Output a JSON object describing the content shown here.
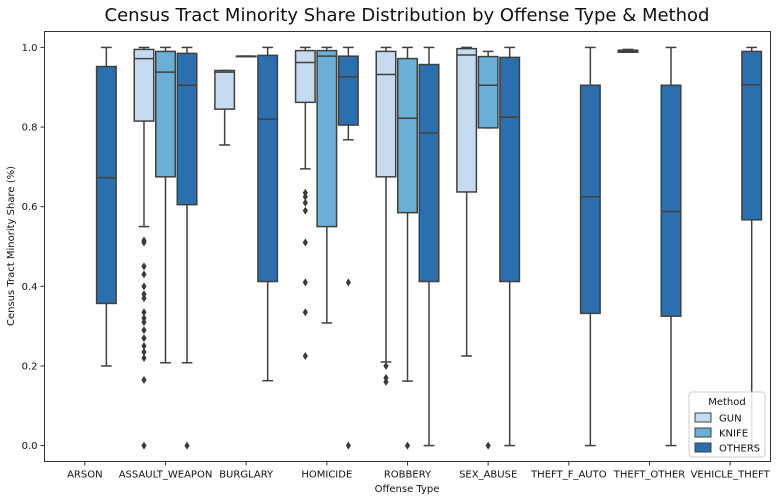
{
  "chart_data": {
    "type": "box",
    "title": "Census Tract Minority Share Distribution by Offense Type & Method",
    "xlabel": "Offense Type",
    "ylabel": "Census Tract Minority Share (%)",
    "ylim": [
      -0.04,
      1.04
    ],
    "yticks": [
      0.0,
      0.2,
      0.4,
      0.6,
      0.8,
      1.0
    ],
    "categories": [
      "ARSON",
      "ASSAULT_WEAPON",
      "BURGLARY",
      "HOMICIDE",
      "ROBBERY",
      "SEX_ABUSE",
      "THEFT_F_AUTO",
      "THEFT_OTHER",
      "VEHICLE_THEFT"
    ],
    "legend": {
      "title": "Method",
      "position": "bottom-right"
    },
    "series": [
      {
        "name": "GUN",
        "color": "#c6dbef",
        "boxes": [
          null,
          {
            "whislo": 0.55,
            "q1": 0.815,
            "med": 0.972,
            "q3": 0.995,
            "whishi": 1.0,
            "fliers": [
              0.515,
              0.51,
              0.45,
              0.43,
              0.4,
              0.38,
              0.37,
              0.335,
              0.32,
              0.31,
              0.29,
              0.27,
              0.25,
              0.235,
              0.22,
              0.165,
              0.0
            ]
          },
          {
            "whislo": 0.755,
            "q1": 0.845,
            "med": 0.938,
            "q3": 0.942,
            "whishi": 0.942,
            "fliers": []
          },
          {
            "whislo": 0.695,
            "q1": 0.862,
            "med": 0.962,
            "q3": 0.992,
            "whishi": 1.0,
            "fliers": [
              0.635,
              0.625,
              0.61,
              0.59,
              0.51,
              0.41,
              0.335,
              0.225
            ]
          },
          {
            "whislo": 0.21,
            "q1": 0.675,
            "med": 0.932,
            "q3": 0.99,
            "whishi": 1.0,
            "fliers": [
              0.2,
              0.17,
              0.16
            ]
          },
          {
            "whislo": 0.225,
            "q1": 0.637,
            "med": 0.981,
            "q3": 0.997,
            "whishi": 1.0,
            "fliers": []
          },
          null,
          {
            "whislo": 0.988,
            "q1": 0.988,
            "med": 0.99,
            "q3": 0.993,
            "whishi": 0.995,
            "fliers": []
          },
          null
        ]
      },
      {
        "name": "KNIFE",
        "color": "#6baed6",
        "boxes": [
          null,
          {
            "whislo": 0.208,
            "q1": 0.675,
            "med": 0.938,
            "q3": 0.99,
            "whishi": 1.0,
            "fliers": []
          },
          {
            "whislo": 0.978,
            "q1": 0.978,
            "med": 0.978,
            "q3": 0.978,
            "whishi": 0.978,
            "fliers": []
          },
          {
            "whislo": 0.308,
            "q1": 0.55,
            "med": 0.978,
            "q3": 0.992,
            "whishi": 1.0,
            "fliers": []
          },
          {
            "whislo": 0.162,
            "q1": 0.585,
            "med": 0.822,
            "q3": 0.972,
            "whishi": 1.0,
            "fliers": [
              0.0
            ]
          },
          {
            "whislo": 0.798,
            "q1": 0.798,
            "med": 0.905,
            "q3": 0.977,
            "whishi": 0.99,
            "fliers": [
              0.0
            ]
          },
          null,
          null,
          null
        ]
      },
      {
        "name": "OTHERS",
        "color": "#2b6faf",
        "boxes": [
          {
            "whislo": 0.2,
            "q1": 0.357,
            "med": 0.673,
            "q3": 0.952,
            "whishi": 1.0,
            "fliers": []
          },
          {
            "whislo": 0.208,
            "q1": 0.605,
            "med": 0.905,
            "q3": 0.985,
            "whishi": 1.0,
            "fliers": [
              0.0
            ]
          },
          {
            "whislo": 0.163,
            "q1": 0.412,
            "med": 0.82,
            "q3": 0.98,
            "whishi": 1.0,
            "fliers": []
          },
          {
            "whislo": 0.768,
            "q1": 0.805,
            "med": 0.926,
            "q3": 0.978,
            "whishi": 1.0,
            "fliers": [
              0.41,
              0.0
            ]
          },
          {
            "whislo": 0.0,
            "q1": 0.412,
            "med": 0.785,
            "q3": 0.957,
            "whishi": 1.0,
            "fliers": []
          },
          {
            "whislo": 0.0,
            "q1": 0.412,
            "med": 0.825,
            "q3": 0.975,
            "whishi": 1.0,
            "fliers": []
          },
          {
            "whislo": 0.0,
            "q1": 0.332,
            "med": 0.625,
            "q3": 0.905,
            "whishi": 1.0,
            "fliers": []
          },
          {
            "whislo": 0.0,
            "q1": 0.325,
            "med": 0.588,
            "q3": 0.905,
            "whishi": 1.0,
            "fliers": []
          },
          {
            "whislo": 0.0,
            "q1": 0.567,
            "med": 0.906,
            "q3": 0.99,
            "whishi": 1.0,
            "fliers": []
          }
        ]
      }
    ]
  }
}
